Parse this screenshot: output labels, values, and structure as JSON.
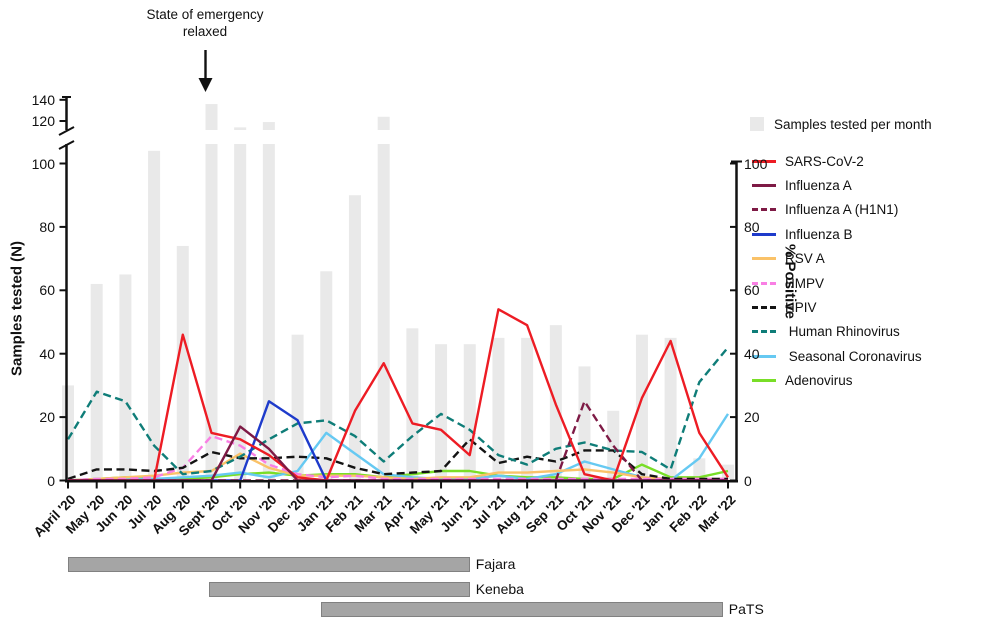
{
  "annotation": {
    "line1": "State of emergency",
    "line2": "relaxed"
  },
  "axes": {
    "left": {
      "label": "Samples tested (N)",
      "ticks": [
        0,
        20,
        40,
        60,
        80,
        100,
        120,
        140
      ],
      "break_between": [
        100,
        120
      ]
    },
    "right": {
      "label": "% Positive",
      "ticks": [
        0,
        20,
        40,
        60,
        80,
        100
      ]
    }
  },
  "legend": {
    "bars_label": "Samples tested per month",
    "bars_color": "#E9E9E9"
  },
  "site_bars": [
    {
      "label": "Fajara",
      "start": 0,
      "end": 14
    },
    {
      "label": "Keneba",
      "start": 4.9,
      "end": 14
    },
    {
      "label": "PaTS",
      "start": 8.82,
      "end": 22.82
    }
  ],
  "chart_data": {
    "type": "bar+line",
    "title": "",
    "xlabel": "",
    "ylabel_left": "Samples tested (N)",
    "ylabel_right": "% Positive",
    "left_axis_range": [
      0,
      140
    ],
    "right_axis_range": [
      0,
      100
    ],
    "grid": false,
    "x": [
      "April '20",
      "May '20",
      "Jun '20",
      "Jul '20",
      "Aug '20",
      "Sept '20",
      "Oct '20",
      "Nov '20",
      "Dec '20",
      "Jan '21",
      "Feb '21",
      "Mar '21",
      "Apr '21",
      "May '21",
      "Jun '21",
      "Jul '21",
      "Aug '21",
      "Sep '21",
      "Oct '21",
      "Nov '21",
      "Dec '21",
      "Jan '22",
      "Feb '22",
      "Mar '22"
    ],
    "bar_series": {
      "name": "Samples tested per month",
      "axis": "left",
      "color": "#E9E9E9",
      "values": [
        30,
        62,
        65,
        104,
        74,
        136,
        114,
        119,
        46,
        66,
        90,
        124,
        48,
        43,
        43,
        45,
        45,
        49,
        36,
        22,
        46,
        45,
        7,
        5
      ]
    },
    "line_series": [
      {
        "name": "SARS-CoV-2",
        "color": "#ED1C24",
        "style": "solid",
        "axis": "right",
        "values": [
          0,
          0,
          0,
          0,
          46,
          15,
          13,
          8,
          1,
          0,
          22,
          37,
          18,
          16,
          8,
          54,
          49,
          24,
          2,
          0,
          26,
          44,
          15,
          1
        ]
      },
      {
        "name": "Influenza A",
        "color": "#7E1A45",
        "style": "solid",
        "axis": "right",
        "values": [
          0,
          0,
          0,
          0,
          0,
          0,
          17,
          10,
          0,
          0,
          0,
          0,
          0,
          0,
          0,
          0,
          0,
          0,
          0,
          0,
          0,
          0,
          0,
          0
        ]
      },
      {
        "name": "Influenza A (H1N1)",
        "color": "#7E1A45",
        "style": "dashed",
        "axis": "right",
        "values": [
          0,
          0,
          0,
          0,
          0,
          0,
          0,
          0,
          0,
          0,
          0,
          0,
          0,
          0,
          0,
          0,
          0,
          0,
          25,
          11,
          0,
          0,
          0,
          0
        ]
      },
      {
        "name": "Influenza B",
        "color": "#1E3BCB",
        "style": "solid",
        "axis": "right",
        "values": [
          0,
          0,
          0,
          0,
          0,
          0,
          0,
          25,
          19,
          0,
          0,
          0,
          0,
          0,
          0,
          0,
          0,
          0,
          0,
          0,
          0,
          0,
          0,
          0
        ]
      },
      {
        "name": "RSV A",
        "color": "#FAC268",
        "style": "solid",
        "axis": "right",
        "values": [
          0,
          0.5,
          1,
          1.5,
          2.5,
          3,
          8.5,
          4,
          1.5,
          1.5,
          1.5,
          1,
          0.5,
          1,
          1,
          2.5,
          2.5,
          3,
          3.5,
          2.5,
          1,
          0.5,
          0.5,
          0.5
        ]
      },
      {
        "name": "HMPV",
        "color": "#F97FE4",
        "style": "dashed",
        "axis": "right",
        "values": [
          0,
          0.5,
          0.5,
          1,
          4,
          14,
          11,
          5,
          2,
          1,
          1.5,
          0.5,
          0.5,
          0.5,
          0.5,
          0.5,
          0.5,
          0.5,
          0.5,
          0.5,
          0.5,
          0.5,
          0.5,
          0.5
        ]
      },
      {
        "name": "HPIV",
        "color": "#141414",
        "style": "dashed",
        "axis": "right",
        "values": [
          0.5,
          3.5,
          3.5,
          3,
          4,
          9,
          7,
          7,
          7.5,
          7,
          4,
          2,
          2.5,
          3,
          13,
          5.5,
          7.5,
          6,
          9.5,
          9.5,
          2,
          0.5,
          0.5,
          0.5
        ]
      },
      {
        "name": " Human Rhinovirus",
        "color": "#0F7D78",
        "style": "dashed",
        "axis": "right",
        "values": [
          13,
          28,
          25,
          11,
          2,
          3,
          7.5,
          13,
          18,
          19,
          14,
          6,
          14,
          21,
          16,
          8,
          5,
          10,
          12,
          9.5,
          9,
          3.5,
          31,
          42
        ]
      },
      {
        "name": " Seasonal Coronavirus",
        "color": "#66C9F2",
        "style": "solid",
        "axis": "right",
        "values": [
          0,
          0.5,
          0.5,
          0.5,
          1,
          1.5,
          2.5,
          1,
          3,
          15,
          8.5,
          2,
          1,
          0.5,
          0.5,
          1.5,
          0.5,
          2,
          6,
          3.5,
          1,
          0,
          7,
          21
        ]
      },
      {
        "name": "Adenovirus",
        "color": "#79DE27",
        "style": "solid",
        "axis": "right",
        "values": [
          0,
          0.5,
          1,
          0.5,
          0.5,
          1,
          2,
          2.5,
          1.5,
          2,
          2,
          1,
          2,
          3,
          3,
          1.5,
          1,
          1,
          0.5,
          0.5,
          5,
          1,
          1,
          3
        ]
      }
    ],
    "annotation": {
      "text": "State of emergency relaxed",
      "at_x": "Sept '20"
    },
    "study_periods": [
      {
        "label": "Fajara",
        "from": "April '20",
        "to": "Jun '21"
      },
      {
        "label": "Keneba",
        "from": "Sept '20",
        "to": "Jun '21"
      },
      {
        "label": "PaTS",
        "from": "Jan '21",
        "to": "Mar '22"
      }
    ]
  }
}
